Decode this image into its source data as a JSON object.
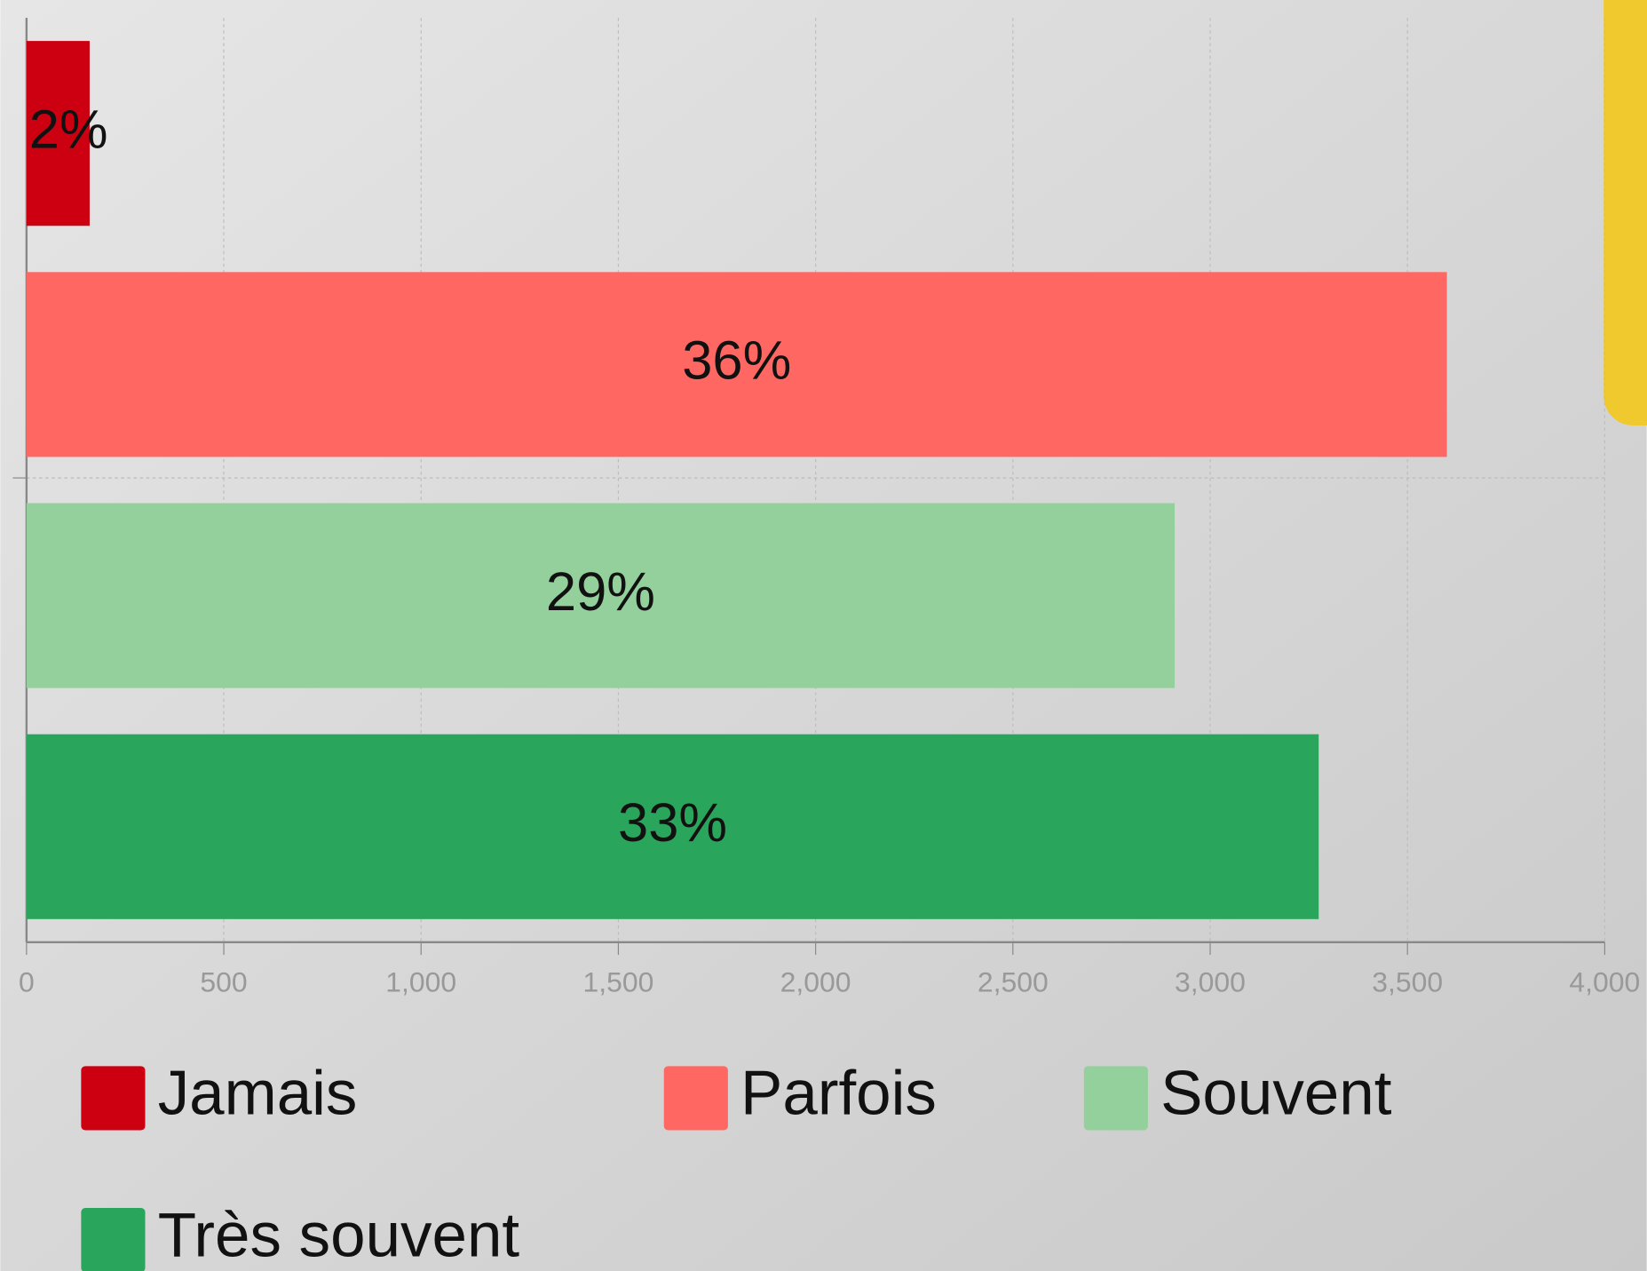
{
  "chart_data": {
    "type": "bar",
    "orientation": "horizontal",
    "series": [
      {
        "name": "Jamais",
        "color": "#cc0010",
        "values": [
          160
        ],
        "value_labels": [
          "2%"
        ]
      },
      {
        "name": "Parfois",
        "color": "#ff6862",
        "values": [
          3600
        ],
        "value_labels": [
          "36%"
        ]
      },
      {
        "name": "Souvent",
        "color": "#94d09b",
        "values": [
          2910
        ],
        "value_labels": [
          "29%"
        ]
      },
      {
        "name": "Très souvent",
        "color": "#29a65c",
        "values": [
          3275
        ],
        "value_labels": [
          "33%"
        ]
      }
    ],
    "xlim": [
      0,
      4000
    ],
    "xticks": [
      0,
      500,
      {
        "value": 1000,
        "label": "1,000"
      },
      {
        "value": 1500,
        "label": "1,500"
      },
      {
        "value": 2000,
        "label": "2,000"
      },
      {
        "value": 2500,
        "label": "2,500"
      },
      {
        "value": 3000,
        "label": "3,000"
      },
      {
        "value": 3500,
        "label": "3,500"
      },
      {
        "value": 4000,
        "label": "4,000"
      }
    ],
    "grid": true,
    "legend": "bottom"
  }
}
